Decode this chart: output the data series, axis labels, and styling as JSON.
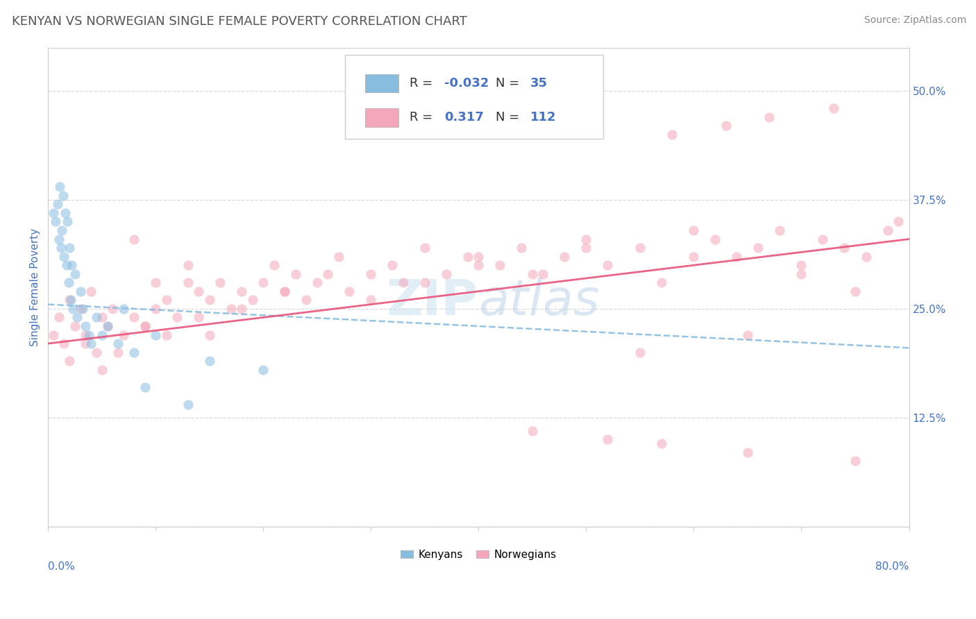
{
  "title": "KENYAN VS NORWEGIAN SINGLE FEMALE POVERTY CORRELATION CHART",
  "source": "Source: ZipAtlas.com",
  "ylabel": "Single Female Poverty",
  "xlim": [
    0.0,
    80.0
  ],
  "ylim": [
    0.0,
    55.0
  ],
  "yticks": [
    0.0,
    12.5,
    25.0,
    37.5,
    50.0
  ],
  "ytick_labels": [
    "",
    "12.5%",
    "25.0%",
    "37.5%",
    "50.0%"
  ],
  "xticks": [
    0.0,
    10.0,
    20.0,
    30.0,
    40.0,
    50.0,
    60.0,
    70.0,
    80.0
  ],
  "kenyan_color": "#89bde0",
  "norwegian_color": "#f4a7bb",
  "kenyan_trend_color": "#89bde0",
  "norwegian_trend_color": "#e8537a",
  "background_color": "#ffffff",
  "grid_color": "#d0d0d0",
  "title_color": "#555555",
  "axis_label_color": "#4472c4",
  "legend_text_color": "#4472c4",
  "legend_r_color": "#000000",
  "watermark_color": "#d0e4f0",
  "title_fontsize": 13,
  "axis_label_fontsize": 11,
  "tick_fontsize": 11,
  "legend_fontsize": 13,
  "source_fontsize": 10,
  "dot_size": 110,
  "dot_alpha": 0.55,
  "dot_edgewidth": 0.3,
  "dot_edgecolor": "white",
  "kenyan_trend_start_y": 25.5,
  "kenyan_trend_end_y": 20.5,
  "norwegian_trend_start_y": 21.0,
  "norwegian_trend_end_y": 33.0
}
